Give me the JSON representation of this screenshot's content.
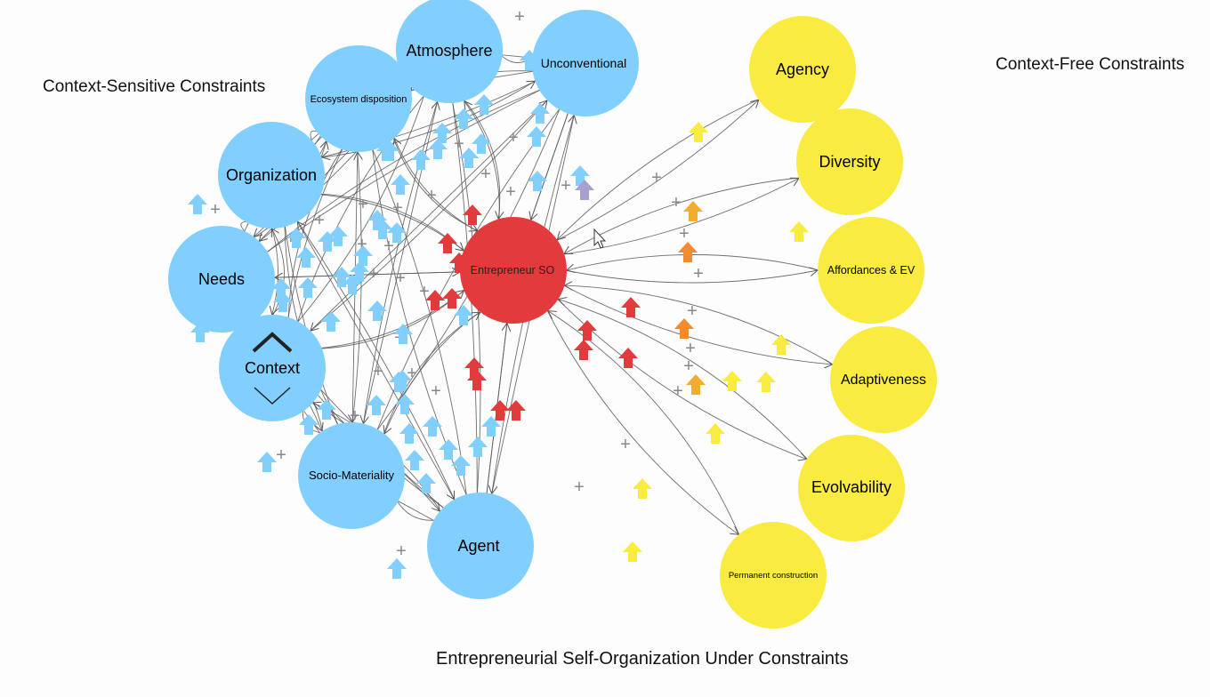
{
  "labels": {
    "context_sensitive": "Context-Sensitive Constraints",
    "context_free": "Context-Free Constraints",
    "title": "Entrepreneurial Self-Organization Under Constraints"
  },
  "colors": {
    "blue": "#80cfff",
    "yellow": "#faeb40",
    "red": "#e33b3b",
    "orange": "#f28a30",
    "gold": "#f2ad2f",
    "lavender": "#a6a1cc",
    "edge": "#555555",
    "plus": "#888888"
  },
  "nodes": {
    "atmosphere": "Atmosphere",
    "unconventional": "Unconventional",
    "ecosystem": "Ecosystem disposition",
    "organization": "Organization",
    "needs": "Needs",
    "context": "Context",
    "socio": "Socio-Materiality",
    "agent": "Agent",
    "entrepreneur": "Entrepreneur SO",
    "agency": "Agency",
    "diversity": "Diversity",
    "affordances": "Affordances & EV",
    "adaptiveness": "Adaptiveness",
    "evolvability": "Evolvability",
    "permanent": "Permanent construction"
  },
  "icons": [
    "chevron-up-icon",
    "chevron-down-icon",
    "mouse-cursor-icon",
    "up-arrow-icon",
    "plus-icon"
  ]
}
